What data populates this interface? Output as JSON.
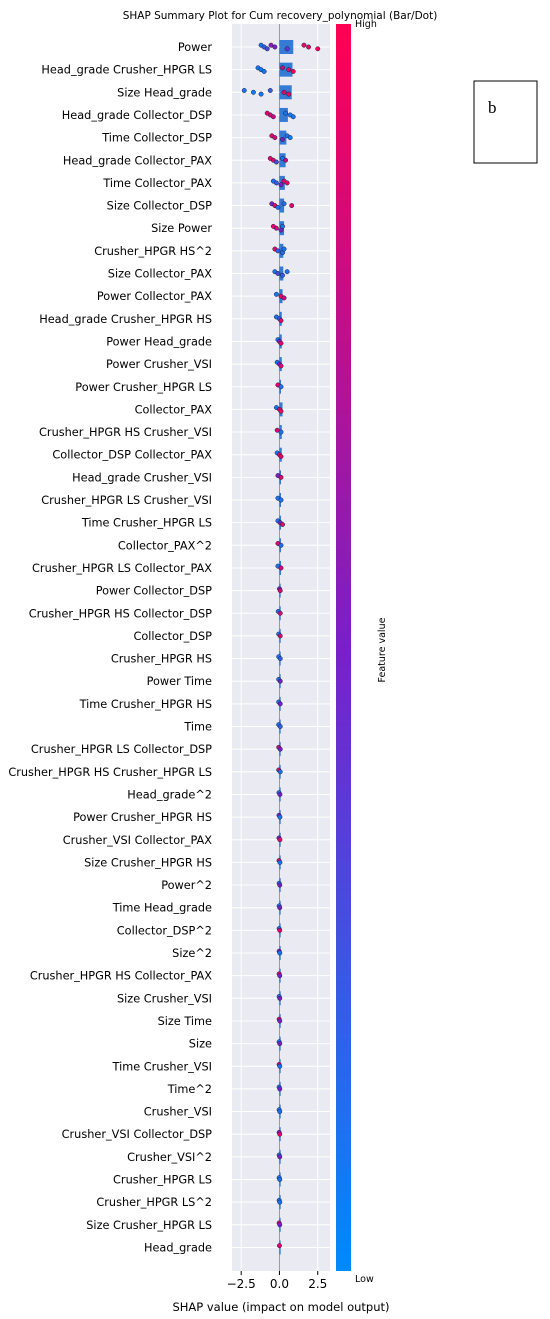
{
  "chart_data": {
    "type": "scatter",
    "title": "SHAP Summary Plot for Cum recovery_polynomial (Bar/Dot)",
    "xlabel": "SHAP value (impact on model output)",
    "xlim": [
      -3.1,
      3.3
    ],
    "xticks": [
      -2.5,
      0.0,
      2.5
    ],
    "xtick_labels": [
      "−2.5",
      "0.0",
      "2.5"
    ],
    "grid": true,
    "colorbar": {
      "label": "Feature value",
      "high": "High",
      "low": "Low",
      "colors": [
        "#008afb",
        "#ff0052"
      ]
    },
    "panel_label": "b",
    "features": [
      {
        "name": "Power",
        "bar": 0.9,
        "points": [
          [
            -1.2,
            0.1
          ],
          [
            -1.0,
            0.2
          ],
          [
            -0.8,
            0.3
          ],
          [
            -0.55,
            0.6
          ],
          [
            -0.3,
            0.5
          ],
          [
            0.5,
            0.4
          ],
          [
            1.6,
            0.9
          ],
          [
            1.9,
            0.95
          ],
          [
            2.5,
            1.0
          ]
        ]
      },
      {
        "name": "Head_grade Crusher_HPGR LS",
        "bar": 0.85,
        "points": [
          [
            -1.4,
            0.1
          ],
          [
            -1.2,
            0.05
          ],
          [
            -1.0,
            0.1
          ],
          [
            0.2,
            0.8
          ],
          [
            0.6,
            0.9
          ],
          [
            0.9,
            0.95
          ]
        ]
      },
      {
        "name": "Size Head_grade",
        "bar": 0.8,
        "points": [
          [
            -2.3,
            0.1
          ],
          [
            -1.7,
            0.05
          ],
          [
            -1.2,
            0.1
          ],
          [
            -0.6,
            0.2
          ],
          [
            0.3,
            0.9
          ],
          [
            0.6,
            0.95
          ]
        ]
      },
      {
        "name": "Head_grade Collector_DSP",
        "bar": 0.55,
        "points": [
          [
            -0.8,
            0.9
          ],
          [
            -0.6,
            0.85
          ],
          [
            -0.4,
            0.8
          ],
          [
            0.4,
            0.1
          ],
          [
            0.7,
            0.05
          ],
          [
            0.9,
            0.1
          ]
        ]
      },
      {
        "name": "Time Collector_DSP",
        "bar": 0.45,
        "points": [
          [
            -0.5,
            0.9
          ],
          [
            -0.3,
            0.85
          ],
          [
            0.2,
            0.5
          ],
          [
            0.5,
            0.1
          ],
          [
            0.7,
            0.05
          ]
        ]
      },
      {
        "name": "Head_grade Collector_PAX",
        "bar": 0.4,
        "points": [
          [
            -0.6,
            0.9
          ],
          [
            -0.4,
            0.85
          ],
          [
            -0.2,
            0.3
          ],
          [
            0.2,
            0.1
          ],
          [
            0.4,
            0.8
          ]
        ]
      },
      {
        "name": "Time Collector_PAX",
        "bar": 0.35,
        "points": [
          [
            -0.4,
            0.1
          ],
          [
            -0.2,
            0.2
          ],
          [
            0.1,
            0.5
          ],
          [
            0.3,
            0.9
          ],
          [
            0.5,
            0.9
          ]
        ]
      },
      {
        "name": "Size Collector_DSP",
        "bar": 0.3,
        "points": [
          [
            -0.5,
            0.5
          ],
          [
            -0.3,
            0.9
          ],
          [
            -0.1,
            0.1
          ],
          [
            0.3,
            0.1
          ],
          [
            0.8,
            0.9
          ]
        ]
      },
      {
        "name": "Size Power",
        "bar": 0.3,
        "points": [
          [
            -0.4,
            0.9
          ],
          [
            -0.2,
            0.85
          ],
          [
            0.1,
            0.5
          ],
          [
            0.2,
            0.1
          ]
        ]
      },
      {
        "name": "Crusher_HPGR HS^2",
        "bar": 0.25,
        "points": [
          [
            -0.3,
            0.9
          ],
          [
            -0.1,
            0.2
          ],
          [
            0.2,
            0.1
          ],
          [
            0.3,
            0.1
          ]
        ]
      },
      {
        "name": "Size Collector_PAX",
        "bar": 0.25,
        "points": [
          [
            -0.3,
            0.1
          ],
          [
            -0.1,
            0.3
          ],
          [
            0.2,
            0.2
          ],
          [
            0.5,
            0.1
          ]
        ]
      },
      {
        "name": "Power Collector_PAX",
        "bar": 0.2,
        "points": [
          [
            -0.2,
            0.1
          ],
          [
            0.1,
            0.9
          ],
          [
            0.3,
            0.8
          ]
        ]
      },
      {
        "name": "Head_grade Crusher_HPGR HS",
        "bar": 0.15,
        "points": [
          [
            -0.2,
            0.1
          ],
          [
            0.0,
            0.2
          ],
          [
            0.1,
            0.9
          ]
        ]
      },
      {
        "name": "Power Head_grade",
        "bar": 0.15,
        "points": [
          [
            -0.1,
            0.1
          ],
          [
            0.0,
            0.5
          ],
          [
            0.1,
            0.9
          ]
        ]
      },
      {
        "name": "Power Crusher_VSI",
        "bar": 0.15,
        "points": [
          [
            -0.15,
            0.1
          ],
          [
            0.0,
            0.5
          ],
          [
            0.1,
            0.9
          ]
        ]
      },
      {
        "name": "Power Crusher_HPGR LS",
        "bar": 0.1,
        "points": [
          [
            -0.1,
            0.9
          ],
          [
            0.1,
            0.1
          ]
        ]
      },
      {
        "name": "Collector_PAX",
        "bar": 0.2,
        "points": [
          [
            -0.2,
            0.1
          ],
          [
            0.0,
            0.9
          ],
          [
            0.1,
            0.95
          ]
        ]
      },
      {
        "name": "Crusher_HPGR HS Crusher_VSI",
        "bar": 0.15,
        "points": [
          [
            -0.15,
            0.9
          ],
          [
            0.1,
            0.1
          ]
        ]
      },
      {
        "name": "Collector_DSP Collector_PAX",
        "bar": 0.15,
        "points": [
          [
            -0.15,
            0.1
          ],
          [
            0.0,
            0.9
          ],
          [
            0.1,
            0.9
          ]
        ]
      },
      {
        "name": "Head_grade Crusher_VSI",
        "bar": 0.1,
        "points": [
          [
            -0.1,
            0.5
          ],
          [
            0.1,
            0.9
          ]
        ]
      },
      {
        "name": "Crusher_HPGR LS Crusher_VSI",
        "bar": 0.1,
        "points": [
          [
            -0.1,
            0.1
          ],
          [
            0.1,
            0.1
          ]
        ]
      },
      {
        "name": "Time Crusher_HPGR LS",
        "bar": 0.1,
        "points": [
          [
            -0.1,
            0.1
          ],
          [
            0.05,
            0.5
          ],
          [
            0.2,
            0.9
          ]
        ]
      },
      {
        "name": "Collector_PAX^2",
        "bar": 0.1,
        "points": [
          [
            -0.1,
            0.9
          ],
          [
            0.1,
            0.1
          ]
        ]
      },
      {
        "name": "Crusher_HPGR LS Collector_PAX",
        "bar": 0.1,
        "points": [
          [
            -0.1,
            0.1
          ],
          [
            0.1,
            0.9
          ]
        ]
      },
      {
        "name": "Power Collector_DSP",
        "bar": 0.05,
        "points": [
          [
            0.0,
            0.5
          ],
          [
            0.05,
            0.9
          ]
        ]
      },
      {
        "name": "Crusher_HPGR HS Collector_DSP",
        "bar": 0.08,
        "points": [
          [
            -0.08,
            0.1
          ],
          [
            0.05,
            0.9
          ]
        ]
      },
      {
        "name": "Collector_DSP",
        "bar": 0.08,
        "points": [
          [
            -0.05,
            0.1
          ],
          [
            0.05,
            0.9
          ]
        ]
      },
      {
        "name": "Crusher_HPGR HS",
        "bar": 0.06,
        "points": [
          [
            -0.05,
            0.1
          ],
          [
            0.05,
            0.2
          ]
        ]
      },
      {
        "name": "Power Time",
        "bar": 0.05,
        "points": [
          [
            -0.05,
            0.1
          ],
          [
            0.05,
            0.5
          ]
        ]
      },
      {
        "name": "Time Crusher_HPGR HS",
        "bar": 0.05,
        "points": [
          [
            -0.05,
            0.1
          ],
          [
            0.05,
            0.5
          ]
        ]
      },
      {
        "name": "Time",
        "bar": 0.05,
        "points": [
          [
            -0.05,
            0.1
          ],
          [
            0.05,
            0.2
          ]
        ]
      },
      {
        "name": "Crusher_HPGR LS Collector_DSP",
        "bar": 0.05,
        "points": [
          [
            -0.05,
            0.9
          ],
          [
            0.05,
            0.5
          ]
        ]
      },
      {
        "name": "Crusher_HPGR HS Crusher_HPGR LS",
        "bar": 0.05,
        "points": [
          [
            -0.05,
            0.9
          ],
          [
            0.05,
            0.1
          ]
        ]
      },
      {
        "name": "Head_grade^2",
        "bar": 0.04,
        "points": [
          [
            -0.03,
            0.1
          ],
          [
            0.03,
            0.5
          ]
        ]
      },
      {
        "name": "Power Crusher_HPGR HS",
        "bar": 0.04,
        "points": [
          [
            -0.03,
            0.5
          ],
          [
            0.03,
            0.1
          ]
        ]
      },
      {
        "name": "Crusher_VSI Collector_PAX",
        "bar": 0.04,
        "points": [
          [
            -0.03,
            0.5
          ],
          [
            0.03,
            0.9
          ]
        ]
      },
      {
        "name": "Size Crusher_HPGR HS",
        "bar": 0.04,
        "points": [
          [
            -0.03,
            0.9
          ],
          [
            0.03,
            0.1
          ]
        ]
      },
      {
        "name": "Power^2",
        "bar": 0.03,
        "points": [
          [
            -0.02,
            0.1
          ],
          [
            0.02,
            0.5
          ]
        ]
      },
      {
        "name": "Time Head_grade",
        "bar": 0.03,
        "points": [
          [
            -0.02,
            0.1
          ],
          [
            0.02,
            0.5
          ]
        ]
      },
      {
        "name": "Collector_DSP^2",
        "bar": 0.03,
        "points": [
          [
            -0.02,
            0.1
          ],
          [
            0.02,
            0.9
          ]
        ]
      },
      {
        "name": "Size^2",
        "bar": 0.03,
        "points": [
          [
            -0.02,
            0.5
          ],
          [
            0.02,
            0.1
          ]
        ]
      },
      {
        "name": "Crusher_HPGR HS Collector_PAX",
        "bar": 0.03,
        "points": [
          [
            -0.02,
            0.9
          ],
          [
            0.02,
            0.5
          ]
        ]
      },
      {
        "name": "Size Crusher_VSI",
        "bar": 0.03,
        "points": [
          [
            -0.02,
            0.1
          ],
          [
            0.02,
            0.5
          ]
        ]
      },
      {
        "name": "Size Time",
        "bar": 0.03,
        "points": [
          [
            -0.02,
            0.9
          ],
          [
            0.02,
            0.5
          ]
        ]
      },
      {
        "name": "Size",
        "bar": 0.03,
        "points": [
          [
            -0.02,
            0.1
          ],
          [
            0.02,
            0.5
          ]
        ]
      },
      {
        "name": "Time Crusher_VSI",
        "bar": 0.03,
        "points": [
          [
            -0.02,
            0.9
          ],
          [
            0.02,
            0.1
          ]
        ]
      },
      {
        "name": "Time^2",
        "bar": 0.02,
        "points": [
          [
            -0.02,
            0.1
          ],
          [
            0.02,
            0.5
          ]
        ]
      },
      {
        "name": "Crusher_VSI",
        "bar": 0.02,
        "points": [
          [
            -0.02,
            0.1
          ],
          [
            0.02,
            0.1
          ]
        ]
      },
      {
        "name": "Crusher_VSI Collector_DSP",
        "bar": 0.02,
        "points": [
          [
            -0.02,
            0.5
          ],
          [
            0.02,
            0.9
          ]
        ]
      },
      {
        "name": "Crusher_VSI^2",
        "bar": 0.02,
        "points": [
          [
            -0.02,
            0.1
          ],
          [
            0.02,
            0.5
          ]
        ]
      },
      {
        "name": "Crusher_HPGR LS",
        "bar": 0.02,
        "points": [
          [
            -0.02,
            0.1
          ],
          [
            0.02,
            0.1
          ]
        ]
      },
      {
        "name": "Crusher_HPGR LS^2",
        "bar": 0.02,
        "points": [
          [
            -0.02,
            0.1
          ],
          [
            0.02,
            0.1
          ]
        ]
      },
      {
        "name": "Size Crusher_HPGR LS",
        "bar": 0.02,
        "points": [
          [
            -0.02,
            0.9
          ],
          [
            0.02,
            0.5
          ]
        ]
      },
      {
        "name": "Head_grade",
        "bar": 0.01,
        "points": [
          [
            0.0,
            0.9
          ]
        ]
      }
    ]
  }
}
